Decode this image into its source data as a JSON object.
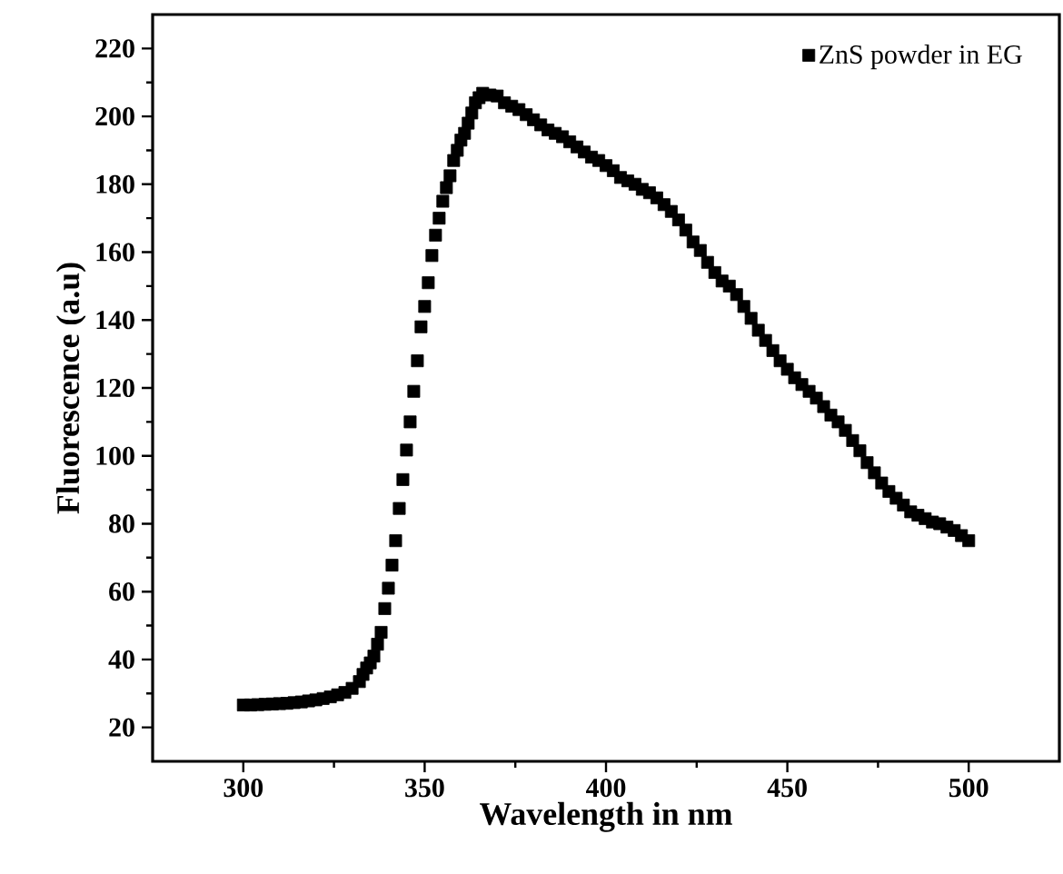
{
  "chart_data": {
    "type": "scatter",
    "xlabel": "Wavelength in nm",
    "ylabel": "Fluorescence (a.u)",
    "xlim": [
      275,
      525
    ],
    "xticks": [
      300,
      350,
      400,
      450,
      500
    ],
    "ylim": [
      10,
      230
    ],
    "yticks": [
      20,
      40,
      60,
      80,
      100,
      120,
      140,
      160,
      180,
      200,
      220
    ],
    "legend": "top right",
    "marker": "square",
    "grid": false,
    "series": [
      {
        "name": "ZnS powder in EG",
        "color": "#000000",
        "x": [
          300,
          302,
          304,
          306,
          308,
          310,
          312,
          314,
          316,
          318,
          320,
          322,
          324,
          326,
          328,
          330,
          332,
          333,
          334,
          335,
          336,
          337,
          338,
          339,
          340,
          341,
          342,
          343,
          344,
          345,
          346,
          347,
          348,
          349,
          350,
          351,
          352,
          353,
          354,
          355,
          356,
          357,
          358,
          359,
          360,
          361,
          362,
          363,
          364,
          365,
          366,
          368,
          370,
          372,
          374,
          376,
          378,
          380,
          382,
          384,
          386,
          388,
          390,
          392,
          394,
          396,
          398,
          400,
          402,
          404,
          406,
          408,
          410,
          412,
          414,
          416,
          418,
          420,
          422,
          424,
          426,
          428,
          430,
          432,
          434,
          436,
          438,
          440,
          442,
          444,
          446,
          448,
          450,
          452,
          454,
          456,
          458,
          460,
          462,
          464,
          466,
          468,
          470,
          472,
          474,
          476,
          478,
          480,
          482,
          484,
          486,
          488,
          490,
          492,
          494,
          496,
          498,
          500
        ],
        "values": [
          26.6,
          26.6,
          26.7,
          26.8,
          26.9,
          27.0,
          27.1,
          27.3,
          27.5,
          27.8,
          28.1,
          28.5,
          29.0,
          29.6,
          30.3,
          31.5,
          33.5,
          35.6,
          37.5,
          39,
          41,
          44.5,
          48,
          55,
          61,
          67.8,
          75,
          84.5,
          93,
          101.7,
          110,
          119,
          128,
          138,
          144,
          151,
          159,
          165,
          170,
          175,
          179,
          182.5,
          187,
          190,
          193,
          195,
          198,
          201,
          204,
          205.5,
          206.8,
          206.3,
          206,
          204,
          203,
          202,
          200.5,
          199,
          197.5,
          196,
          195,
          194,
          192.5,
          191,
          189.5,
          188,
          187,
          185.5,
          184,
          182,
          181,
          180,
          178.5,
          177.5,
          176,
          174,
          172,
          169.5,
          166.5,
          163,
          160.5,
          157,
          154,
          151.5,
          150,
          147.5,
          144,
          140.5,
          137,
          134,
          131,
          128,
          125.5,
          123,
          121,
          119,
          117,
          114.5,
          112,
          110,
          107.5,
          104.5,
          101.5,
          98,
          95,
          92,
          89.5,
          87.5,
          85.5,
          83.5,
          82.5,
          81.5,
          80.5,
          80,
          79,
          78,
          76.5,
          75
        ]
      }
    ]
  }
}
